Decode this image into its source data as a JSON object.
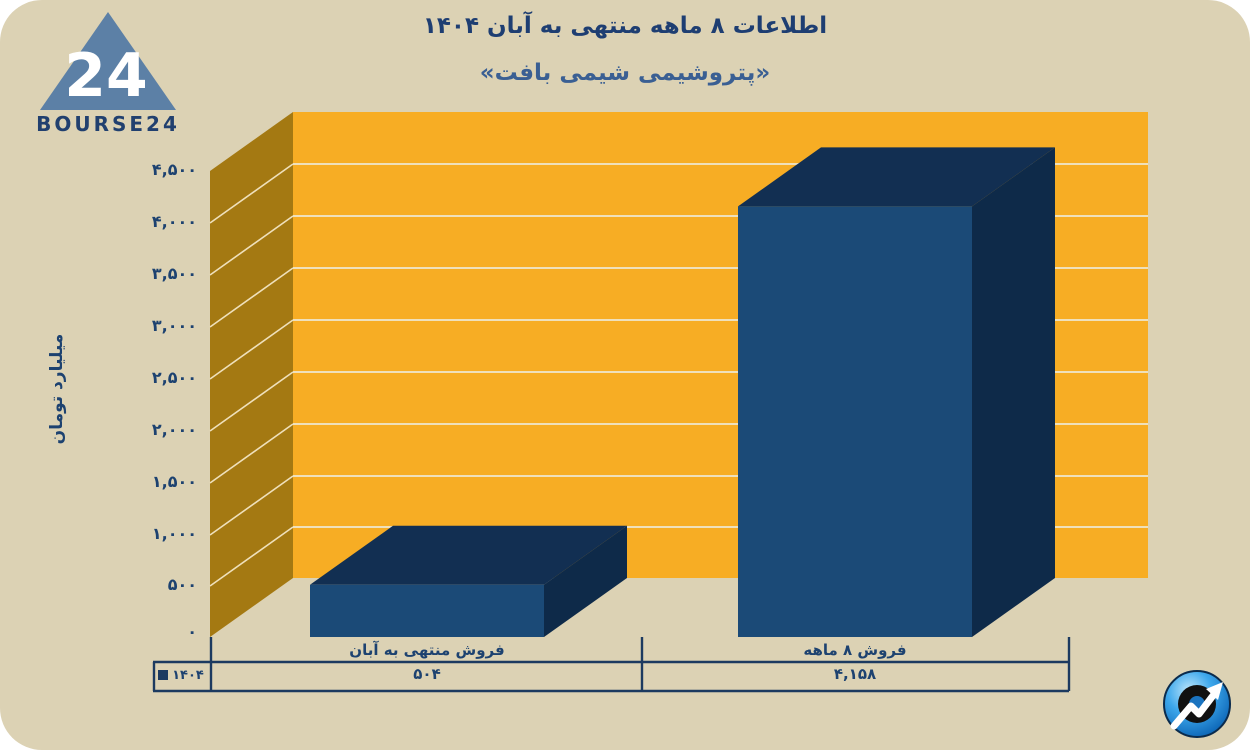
{
  "header": {
    "title": "اطلاعات ۸ ماهه منتهی به آبان ۱۴۰۴",
    "subtitle": "«پتروشیمی شیمی بافت»"
  },
  "brand": {
    "logo_text": "BOURSE24",
    "logo_number": "24"
  },
  "chart": {
    "ylabel": "میلیارد تومان",
    "y_ticks": [
      "۴,۵۰۰",
      "۴,۰۰۰",
      "۳,۵۰۰",
      "۳,۰۰۰",
      "۲,۵۰۰",
      "۲,۰۰۰",
      "۱,۵۰۰",
      "۱,۰۰۰",
      "۵۰۰",
      "۰"
    ],
    "colors": {
      "canvas": "#DCD2B4",
      "wall_back": "#F7AD24",
      "wall_side": "#A47912",
      "gridline": "#EFE0BB",
      "bar_front": "#1B4A77",
      "bar_top": "#122F52",
      "bar_side": "#0E2A49",
      "table_line": "#1C3A60",
      "text_navy": "#1D4270"
    }
  },
  "chart_data": {
    "type": "bar",
    "style": "3d",
    "title": "اطلاعات ۸ ماهه منتهی به آبان ۱۴۰۴",
    "subtitle": "«پتروشیمی شیمی بافت»",
    "ylabel": "میلیارد تومان",
    "ylim": [
      0,
      4500
    ],
    "grid": true,
    "categories": [
      "فروش منتهی به آبان",
      "فروش ۸ ماهه"
    ],
    "series": [
      {
        "name": "۱۴۰۴",
        "values": [
          504,
          4158
        ]
      }
    ],
    "value_labels": [
      "۵۰۴",
      "۴,۱۵۸"
    ]
  },
  "table": {
    "legend": "۱۴۰۴",
    "col1_header": "فروش منتهی به آبان",
    "col2_header": "فروش ۸ ماهه",
    "col1_value": "۵۰۴",
    "col2_value": "۴,۱۵۸"
  }
}
